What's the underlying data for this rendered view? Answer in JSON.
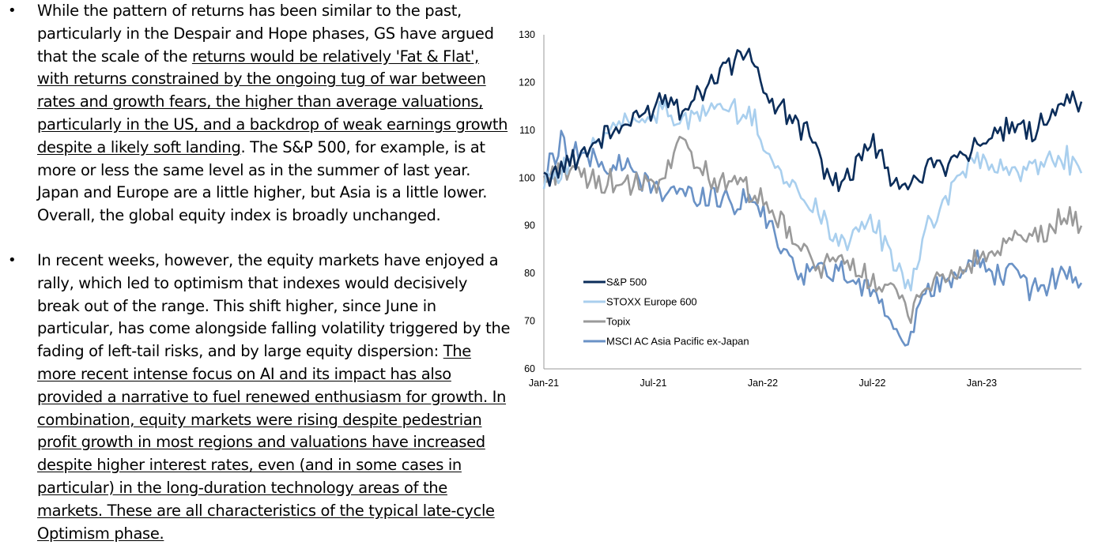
{
  "bullets": [
    {
      "p1": "While the pattern of returns has been similar to the past, particularly in the Despair and Hope phases, GS have argued that the scale of the ",
      "p2": "returns would be relatively 'Fat & Flat', with returns constrained by the ongoing tug of war between rates and growth fears, the higher than average valuations, particularly in the US, and a backdrop of weak earnings growth despite a likely soft landing",
      "p3": ". The S&P 500, for example, is at more or less the same level as in the summer of last year. Japan and Europe are a little higher, but Asia is a little lower. Overall, the global equity index is broadly unchanged."
    },
    {
      "p1": "In recent weeks, however, the equity markets have enjoyed a rally, which led to optimism that indexes would decisively break out of the range. This shift higher, since June in particular, has come alongside falling volatility triggered by the fading of left-tail risks, and by large equity dispersion: ",
      "p2": "The more recent intense focus on AI and its impact has also provided a narrative to fuel renewed enthusiasm for growth. In combination, equity markets were rising despite pedestrian profit growth in most regions and valuations have increased despite higher interest rates, even (and in some cases in particular) in the long-duration technology areas of the markets. These are all characteristics of the typical late-cycle Optimism phase."
    }
  ],
  "chart_data": {
    "type": "line",
    "x_tick_labels": [
      "Jan-21",
      "Jul-21",
      "Jan-22",
      "Jul-22",
      "Jan-23"
    ],
    "y_tick_labels": [
      "60",
      "70",
      "80",
      "90",
      "100",
      "110",
      "120",
      "130"
    ],
    "ylim": [
      60,
      130
    ],
    "xlim": [
      "2021-01",
      "2023-08"
    ],
    "grid": false,
    "legend_position": "lower-left inside plot",
    "x": [
      "2021-01",
      "2021-02",
      "2021-03",
      "2021-04",
      "2021-05",
      "2021-06",
      "2021-07",
      "2021-08",
      "2021-09",
      "2021-10",
      "2021-11",
      "2021-12",
      "2022-01",
      "2022-02",
      "2022-03",
      "2022-04",
      "2022-05",
      "2022-06",
      "2022-07",
      "2022-08",
      "2022-09",
      "2022-10",
      "2022-11",
      "2022-12",
      "2023-01",
      "2023-02",
      "2023-03",
      "2023-04",
      "2023-05",
      "2023-06",
      "2023-07",
      "2023-08"
    ],
    "series": [
      {
        "name": "S&P 500",
        "color": "#0b2d5a",
        "values": [
          100,
          103,
          104,
          108,
          110,
          111,
          114,
          117,
          115,
          118,
          122,
          125,
          126,
          115,
          113,
          110,
          104,
          98,
          103,
          108,
          100,
          97,
          103,
          103,
          105,
          107,
          108,
          110,
          110,
          112,
          117,
          116
        ]
      },
      {
        "name": "STOXX Europe 600",
        "color": "#a9cfee",
        "values": [
          100,
          102,
          104,
          107,
          110,
          112,
          113,
          114,
          112,
          113,
          115,
          114,
          113,
          105,
          99,
          96,
          92,
          87,
          88,
          91,
          83,
          77,
          88,
          95,
          100,
          104,
          102,
          102,
          102,
          103,
          105,
          101
        ]
      },
      {
        "name": "Topix",
        "color": "#9a9a9a",
        "values": [
          100,
          102,
          101,
          99,
          99,
          98,
          98,
          100,
          110,
          101,
          100,
          99,
          97,
          93,
          89,
          84,
          82,
          82,
          80,
          79,
          77,
          72,
          77,
          79,
          80,
          83,
          84,
          86,
          87,
          88,
          92,
          90
        ]
      },
      {
        "name": "MSCI AC Asia Pacific ex-Japan",
        "color": "#6a92c6",
        "values": [
          100,
          108,
          105,
          103,
          102,
          102,
          98,
          98,
          96,
          96,
          96,
          95,
          96,
          90,
          84,
          80,
          81,
          80,
          78,
          77,
          70,
          66,
          75,
          78,
          80,
          83,
          80,
          80,
          77,
          78,
          80,
          78
        ]
      }
    ]
  }
}
